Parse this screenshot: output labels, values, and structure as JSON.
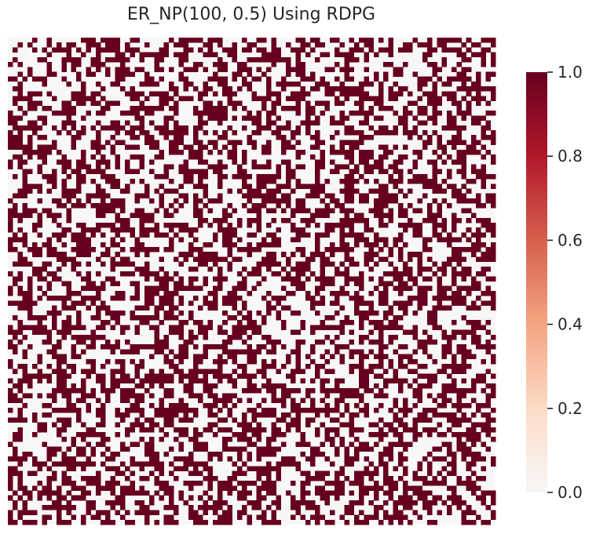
{
  "chart_data": {
    "type": "heatmap",
    "title": "ER_NP(100, 0.5) Using RDPG",
    "rows": 100,
    "cols": 100,
    "edge_probability": 0.5,
    "symmetric": true,
    "value_range": [
      0.0,
      1.0
    ],
    "colormap": "RdBu_r (reds half)",
    "colors": {
      "low": "#f7f7f7",
      "high": "#67001f"
    },
    "colorbar": {
      "ticks": [
        "0.0",
        "0.2",
        "0.4",
        "0.6",
        "0.8",
        "1.0"
      ],
      "tick_values": [
        0.0,
        0.2,
        0.4,
        0.6,
        0.8,
        1.0
      ],
      "stops": [
        "#f7f7f7",
        "#fddbc7",
        "#f4a582",
        "#d6604d",
        "#b2182b",
        "#67001f"
      ]
    },
    "xlabel": "",
    "ylabel": "",
    "grid": false
  }
}
